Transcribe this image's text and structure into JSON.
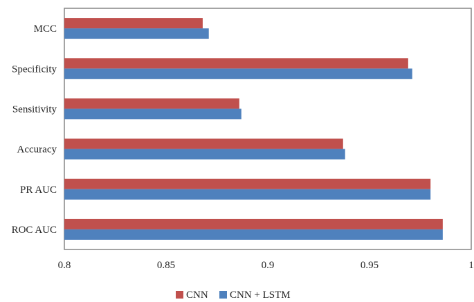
{
  "chart_data": {
    "type": "bar",
    "orientation": "horizontal",
    "categories": [
      "MCC",
      "Specificity",
      "Sensitivity",
      "Accuracy",
      "PR AUC",
      "ROC AUC"
    ],
    "series": [
      {
        "name": "CNN",
        "color": "#c0504d",
        "values": [
          0.868,
          0.969,
          0.886,
          0.937,
          0.98,
          0.986
        ]
      },
      {
        "name": "CNN + LSTM",
        "color": "#4f81bd",
        "values": [
          0.871,
          0.971,
          0.887,
          0.938,
          0.98,
          0.986
        ]
      }
    ],
    "xlim": [
      0.8,
      1
    ],
    "xticks": [
      "0.8",
      "0.85",
      "0.9",
      "0.95",
      "1"
    ],
    "grid": false,
    "legend_position": "bottom"
  }
}
